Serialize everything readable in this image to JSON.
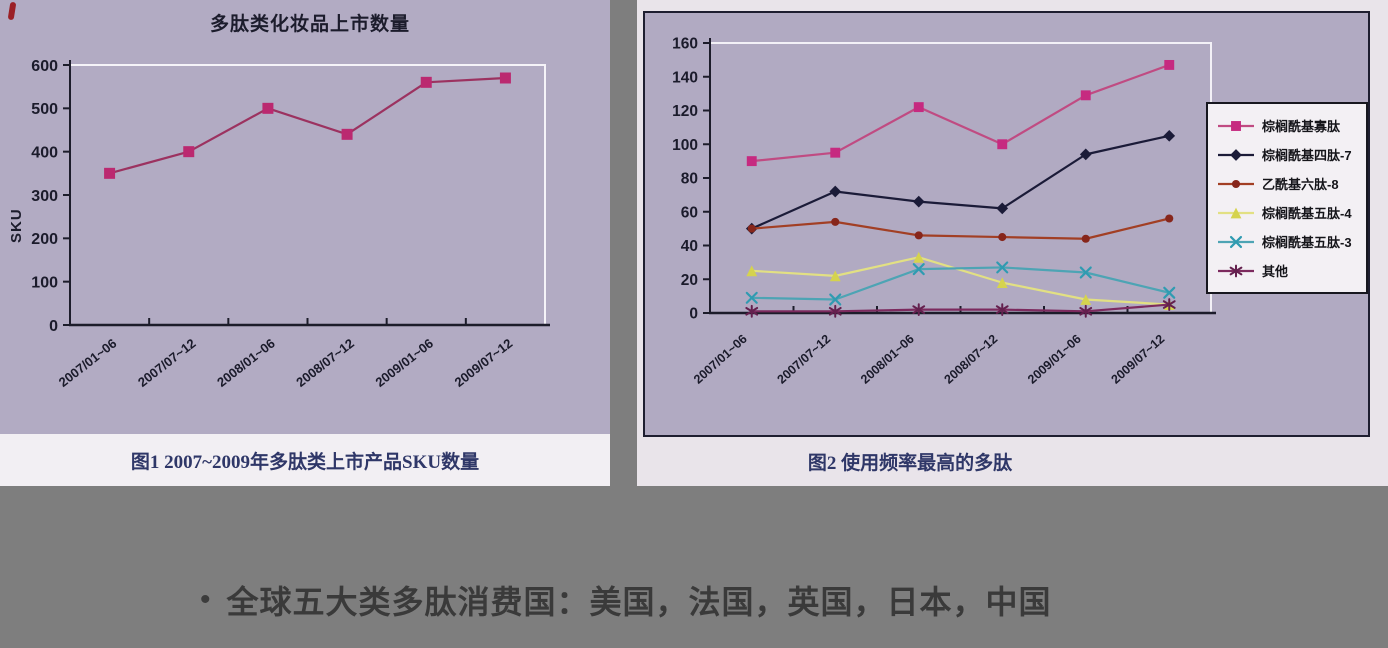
{
  "page": {
    "background": "#7e7e7e",
    "scan_background": "#b2abc3"
  },
  "bullet": {
    "marker": "•",
    "text": "全球五大类多肽消费国：美国，法国，英国，日本，中国"
  },
  "chart_data": [
    {
      "type": "line",
      "title": "多肽类化妆品上市数量",
      "caption": "图1 2007~2009年多肽类上市产品SKU数量",
      "xlabel": "",
      "ylabel": "SKU",
      "ylim": [
        0,
        600
      ],
      "ytick_step": 100,
      "grid": false,
      "legend_position": "none",
      "categories": [
        "2007/01~06",
        "2007/07~12",
        "2008/01~06",
        "2008/07~12",
        "2009/01~06",
        "2009/07~12"
      ],
      "series": [
        {
          "name": "SKU",
          "marker": "square",
          "color": "#bb2970",
          "line_color": "#9c3260",
          "values": [
            350,
            400,
            500,
            440,
            560,
            570
          ]
        }
      ]
    },
    {
      "type": "line",
      "title": "",
      "caption": "图2 使用频率最高的多肽",
      "xlabel": "",
      "ylabel": "",
      "ylim": [
        0,
        160
      ],
      "ytick_step": 20,
      "grid": false,
      "legend_position": "right",
      "categories": [
        "2007/01~06",
        "2007/07~12",
        "2008/01~06",
        "2008/07~12",
        "2009/01~06",
        "2009/07~12"
      ],
      "series": [
        {
          "name": "棕榈酰基寡肽",
          "marker": "square",
          "color": "#c62a80",
          "line_color": "#c04b82",
          "values": [
            90,
            95,
            122,
            100,
            129,
            147
          ]
        },
        {
          "name": "棕榈酰基四肽-7",
          "marker": "diamond",
          "color": "#1b1b38",
          "line_color": "#1b1b38",
          "values": [
            50,
            72,
            66,
            62,
            94,
            105
          ]
        },
        {
          "name": "乙酰基六肽-8",
          "marker": "circle",
          "color": "#87261b",
          "line_color": "#a23f24",
          "values": [
            50,
            54,
            46,
            45,
            44,
            56
          ]
        },
        {
          "name": "棕榈酰基五肽-4",
          "marker": "triangle",
          "color": "#d5d34e",
          "line_color": "#e2e083",
          "values": [
            25,
            22,
            33,
            18,
            8,
            5
          ]
        },
        {
          "name": "棕榈酰基五肽-3",
          "marker": "x",
          "color": "#2f9bb1",
          "line_color": "#4da4b4",
          "values": [
            9,
            8,
            26,
            27,
            24,
            12
          ]
        },
        {
          "name": "其他",
          "marker": "asterisk",
          "color": "#64204e",
          "line_color": "#7c2a5e",
          "values": [
            1,
            1,
            2,
            2,
            1,
            5
          ]
        }
      ]
    }
  ]
}
